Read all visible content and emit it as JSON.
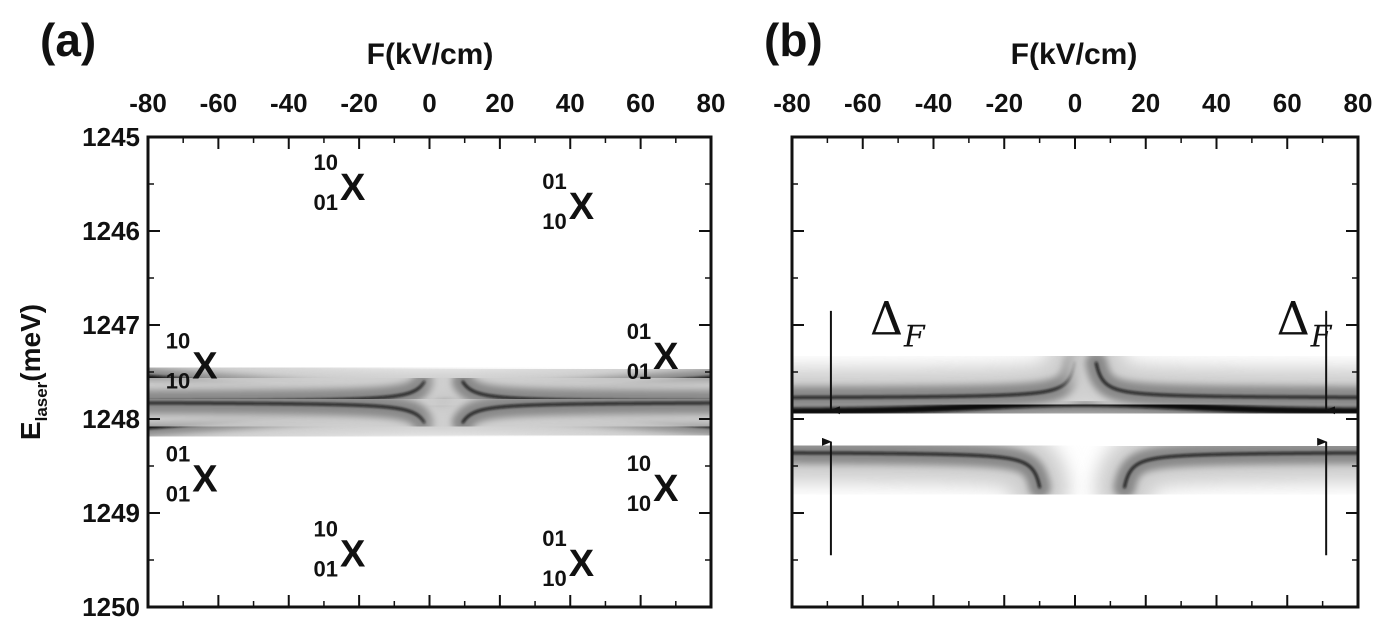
{
  "chart_data": [
    {
      "panel_label": "(a)",
      "type": "heatmap",
      "xlabel": "F(kV/cm)",
      "ylabel": "E",
      "ylabel_sub": "laser",
      "ylabel_unit": "(meV)",
      "x_ticks": [
        "-80",
        "-60",
        "-40",
        "-20",
        "0",
        "20",
        "40",
        "60",
        "80"
      ],
      "y_ticks": [
        "1245",
        "1246",
        "1247",
        "1248",
        "1249",
        "1250"
      ],
      "xlim": [
        -80,
        80
      ],
      "ylim": [
        1245,
        1250
      ],
      "y_inverted": true,
      "colormap": "white-to-black",
      "annotations": [
        {
          "sup": "10",
          "sub": "01",
          "base": "X",
          "x": -26,
          "y": 1245.5
        },
        {
          "sup": "01",
          "sub": "10",
          "base": "X",
          "x": 39,
          "y": 1245.7
        },
        {
          "sup": "10",
          "sub": "10",
          "base": "X",
          "x": -68,
          "y": 1247.4
        },
        {
          "sup": "01",
          "sub": "01",
          "base": "X",
          "x": 63,
          "y": 1247.3
        },
        {
          "sup": "01",
          "sub": "01",
          "base": "X",
          "x": -68,
          "y": 1248.6
        },
        {
          "sup": "10",
          "sub": "10",
          "base": "X",
          "x": 63,
          "y": 1248.7
        },
        {
          "sup": "10",
          "sub": "01",
          "base": "X",
          "x": -26,
          "y": 1249.4
        },
        {
          "sup": "01",
          "sub": "10",
          "base": "X",
          "x": 39,
          "y": 1249.5
        }
      ]
    },
    {
      "panel_label": "(b)",
      "type": "heatmap",
      "xlabel": "F(kV/cm)",
      "x_ticks": [
        "-80",
        "-60",
        "-40",
        "-20",
        "0",
        "20",
        "40",
        "60",
        "80"
      ],
      "xlim": [
        -80,
        80
      ],
      "ylim": [
        1245,
        1250
      ],
      "y_inverted": true,
      "colormap": "white-to-black",
      "annotations": [
        {
          "symbol": "Δ",
          "sub": "F",
          "x": -58,
          "y": 1247.1
        },
        {
          "symbol": "Δ",
          "sub": "F",
          "x": 57,
          "y": 1247.1
        }
      ],
      "gap_arrows_x": [
        -69,
        71
      ],
      "gap_range": [
        1247.95,
        1248.2
      ]
    }
  ]
}
